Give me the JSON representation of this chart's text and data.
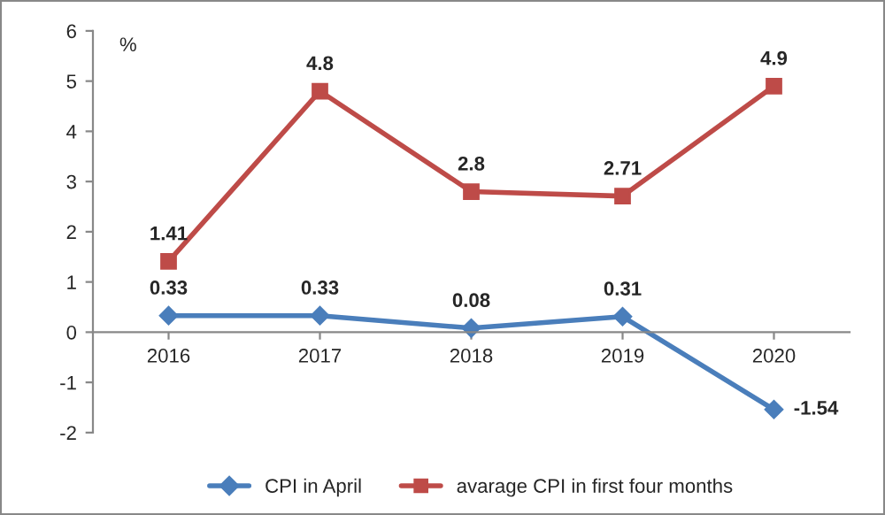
{
  "chart_data": {
    "type": "line",
    "ylabel": "%",
    "categories": [
      "2016",
      "2017",
      "2018",
      "2019",
      "2020"
    ],
    "series": [
      {
        "name": "CPI in April",
        "color": "#4a7ebb",
        "marker": "diamond",
        "values": [
          0.33,
          0.33,
          0.08,
          0.31,
          -1.54
        ]
      },
      {
        "name": "avarage CPI in first four months",
        "color": "#be4b48",
        "marker": "square",
        "values": [
          1.41,
          4.8,
          2.8,
          2.71,
          4.9
        ]
      }
    ],
    "ylim": [
      -2,
      6
    ],
    "yticks": [
      -2,
      -1,
      0,
      1,
      2,
      3,
      4,
      5,
      6
    ],
    "grid": false,
    "legend": "bottom",
    "data_labels": true,
    "line_style": "solid"
  }
}
